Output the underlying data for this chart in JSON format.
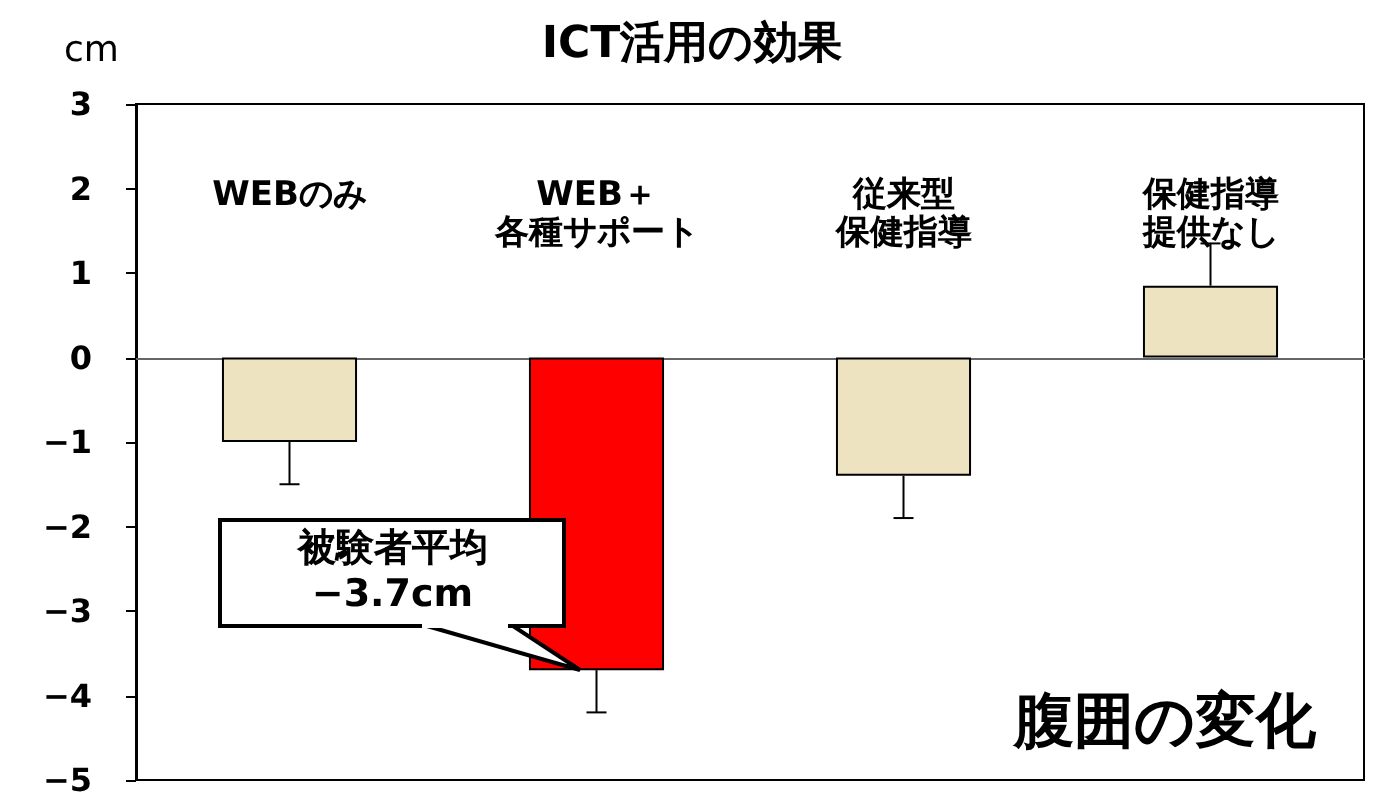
{
  "chart_data": {
    "type": "bar",
    "title": "ICT活用の効果",
    "ylabel": "cm",
    "categories": [
      "WEBのみ",
      "WEB＋各種サポート",
      "従来型保健指導",
      "保健指導提供なし"
    ],
    "values": [
      -1.0,
      -3.7,
      -1.4,
      0.85
    ],
    "colors": [
      "#eee3c0",
      "#ff0000",
      "#eee3c0",
      "#eee3c0"
    ],
    "errors": [
      [
        -1.5,
        -1.0
      ],
      [
        -4.2,
        -3.7
      ],
      [
        -1.9,
        -1.4
      ],
      [
        0.85,
        1.35
      ]
    ],
    "ylim": [
      -5,
      3
    ],
    "yticks": [
      -5,
      -4,
      -3,
      -2,
      -1,
      0,
      1,
      2,
      3
    ],
    "annotations": [
      {
        "text": "被験者平均\n−3.7cm",
        "x": "WEB＋各種サポート",
        "y": -3.7
      },
      "腹囲の変化"
    ]
  }
}
